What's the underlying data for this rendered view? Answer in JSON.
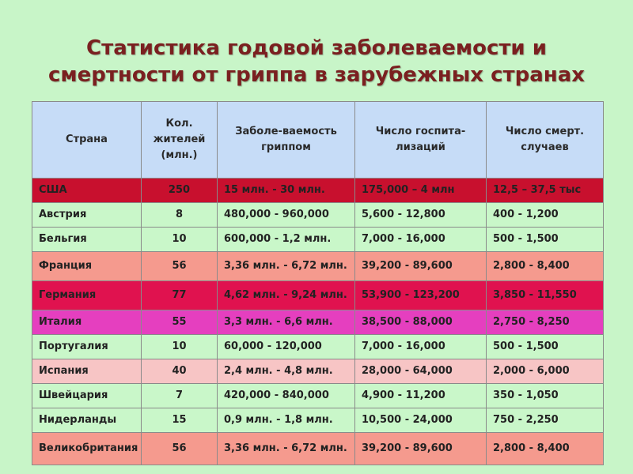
{
  "title": {
    "line1": "Статистика годовой заболеваемости и",
    "line2": "смертности от гриппа в зарубежных странах"
  },
  "colors": {
    "background": "#c8f5c8",
    "title": "#7a2020",
    "header": "#c6dcf7",
    "row_red": "#c8102e",
    "row_light_green": "#c9f7c9",
    "row_salmon": "#f59a8e",
    "row_crimson": "#e0124f",
    "row_magenta": "#e53fbf",
    "row_pink": "#f7c5c5"
  },
  "table": {
    "headers": [
      "Страна",
      "Кол. жителей (млн.)",
      "Заболе-ваемость гриппом",
      "Число госпита-лизаций",
      "Число смерт. случаев"
    ],
    "rows": [
      {
        "country": "США",
        "population": "250",
        "morbidity": "15 млн. - 30 млн.",
        "hospitalizations": "175,000 – 4 млн",
        "deaths": "12,5 – 37,5 тыс",
        "color": "#c8102e"
      },
      {
        "country": "Австрия",
        "population": "8",
        "morbidity": "480,000 - 960,000",
        "hospitalizations": "5,600 - 12,800",
        "deaths": "400 - 1,200",
        "color": "#c9f7c9"
      },
      {
        "country": "Бельгия",
        "population": "10",
        "morbidity": "600,000 - 1,2 млн.",
        "hospitalizations": "7,000 - 16,000",
        "deaths": "500 - 1,500",
        "color": "#c9f7c9"
      },
      {
        "country": "Франция",
        "population": "56",
        "morbidity": "3,36 млн. - 6,72 млн.",
        "hospitalizations": "39,200 - 89,600",
        "deaths": "2,800 - 8,400",
        "color": "#f59a8e"
      },
      {
        "country": "Германия",
        "population": "77",
        "morbidity": "4,62 млн. - 9,24 млн.",
        "hospitalizations": "53,900 - 123,200",
        "deaths": "3,850 - 11,550",
        "color": "#e0124f"
      },
      {
        "country": "Италия",
        "population": "55",
        "morbidity": "3,3 млн. - 6,6 млн.",
        "hospitalizations": "38,500 - 88,000",
        "deaths": "2,750 - 8,250",
        "color": "#e53fbf"
      },
      {
        "country": "Португалия",
        "population": "10",
        "morbidity": "60,000 - 120,000",
        "hospitalizations": "7,000 - 16,000",
        "deaths": "500 - 1,500",
        "color": "#c9f7c9"
      },
      {
        "country": "Испания",
        "population": "40",
        "morbidity": "2,4 млн. - 4,8 млн.",
        "hospitalizations": "28,000 - 64,000",
        "deaths": "2,000 - 6,000",
        "color": "#f7c5c5"
      },
      {
        "country": "Швейцария",
        "population": "7",
        "morbidity": "420,000 - 840,000",
        "hospitalizations": "4,900 - 11,200",
        "deaths": "350 - 1,050",
        "color": "#c9f7c9"
      },
      {
        "country": "Нидерланды",
        "population": "15",
        "morbidity": "0,9 млн. - 1,8 млн.",
        "hospitalizations": "10,500 - 24,000",
        "deaths": "750 - 2,250",
        "color": "#c9f7c9"
      },
      {
        "country": "Великобритания",
        "population": "56",
        "morbidity": "3,36 млн. - 6,72 млн.",
        "hospitalizations": "39,200 - 89,600",
        "deaths": "2,800 - 8,400",
        "color": "#f59a8e"
      }
    ]
  }
}
